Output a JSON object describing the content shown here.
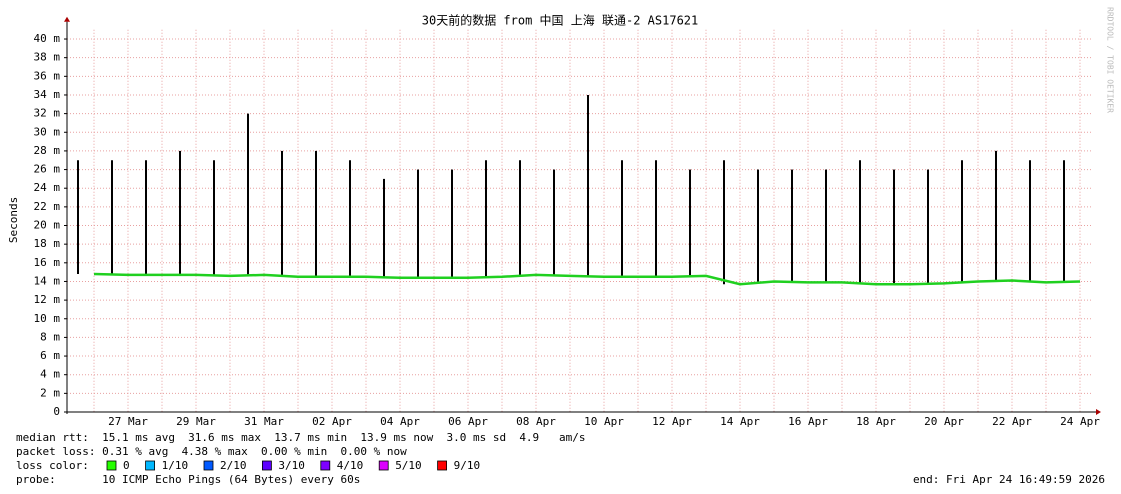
{
  "chart_data": {
    "type": "line",
    "title": "30天前的数据 from 中国 上海 联通-2 AS17621",
    "ylabel": "Seconds",
    "watermark": "RRDTOOL / TOBI OETIKER",
    "categories": [
      null,
      "27 Mar",
      null,
      "29 Mar",
      null,
      "31 Mar",
      null,
      "02 Apr",
      null,
      "04 Apr",
      null,
      "06 Apr",
      null,
      "08 Apr",
      null,
      "10 Apr",
      null,
      "12 Apr",
      null,
      "14 Apr",
      null,
      "16 Apr",
      null,
      "18 Apr",
      null,
      "20 Apr",
      null,
      "22 Apr",
      null,
      "24 Apr"
    ],
    "series": [
      {
        "color": "#20d020",
        "style": "line",
        "values": [
          0.0148,
          0.0147,
          0.0147,
          0.0147,
          0.0146,
          0.0147,
          0.0145,
          0.0145,
          0.0145,
          0.0144,
          0.0144,
          0.0144,
          0.0145,
          0.0147,
          0.0146,
          0.0145,
          0.0145,
          0.0145,
          0.0146,
          0.0137,
          0.014,
          0.0139,
          0.0139,
          0.0137,
          0.0137,
          0.0138,
          0.014,
          0.0141,
          0.0139,
          0.014
        ]
      },
      {
        "color": "#000000",
        "style": "spike",
        "values": [
          0.027,
          0.027,
          0.027,
          0.028,
          0.027,
          0.032,
          0.028,
          0.028,
          0.027,
          0.025,
          0.026,
          0.026,
          0.027,
          0.027,
          0.026,
          0.034,
          0.027,
          0.027,
          0.026,
          0.027,
          0.026,
          0.026,
          0.026,
          0.027,
          0.026,
          0.026,
          0.027,
          0.028,
          0.027,
          0.027
        ]
      }
    ],
    "ylim": [
      0,
      0.041
    ],
    "yticks": [
      0,
      {
        "value": 0.002,
        "label": "2 m"
      },
      {
        "value": 0.004,
        "label": "4 m"
      },
      {
        "value": 0.006,
        "label": "6 m"
      },
      {
        "value": 0.008,
        "label": "8 m"
      },
      {
        "value": 0.01,
        "label": "10 m"
      },
      {
        "value": 0.012,
        "label": "12 m"
      },
      {
        "value": 0.014,
        "label": "14 m"
      },
      {
        "value": 0.016,
        "label": "16 m"
      },
      {
        "value": 0.018,
        "label": "18 m"
      },
      {
        "value": 0.02,
        "label": "20 m"
      },
      {
        "value": 0.022,
        "label": "22 m"
      },
      {
        "value": 0.024,
        "label": "24 m"
      },
      {
        "value": 0.026,
        "label": "26 m"
      },
      {
        "value": 0.028,
        "label": "28 m"
      },
      {
        "value": 0.03,
        "label": "30 m"
      },
      {
        "value": 0.032,
        "label": "32 m"
      },
      {
        "value": 0.034,
        "label": "34 m"
      },
      {
        "value": 0.036,
        "label": "36 m"
      },
      {
        "value": 0.038,
        "label": "38 m"
      },
      {
        "value": 0.04,
        "label": "40 m"
      }
    ],
    "grid": true,
    "stats": [
      "median rtt:  15.1 ms avg  31.6 ms max  13.7 ms min  13.9 ms now  3.0 ms sd  4.9   am/s",
      "packet loss: 0.31 % avg  4.38 % max  0.00 % min  0.00 % now"
    ],
    "loss_title": "loss color:",
    "loss_colors": [
      {
        "label": "0",
        "color": "#26ff00"
      },
      {
        "label": "1/10",
        "color": "#00b8ff"
      },
      {
        "label": "2/10",
        "color": "#0059ff"
      },
      {
        "label": "3/10",
        "color": "#5e00ff"
      },
      {
        "label": "4/10",
        "color": "#7e00ff"
      },
      {
        "label": "5/10",
        "color": "#dd00ff"
      },
      {
        "label": "9/10",
        "color": "#ff0000"
      }
    ],
    "probe": "probe:       10 ICMP Echo Pings (64 Bytes) every 60s",
    "end": "end: Fri Apr 24 16:49:59 2026"
  }
}
